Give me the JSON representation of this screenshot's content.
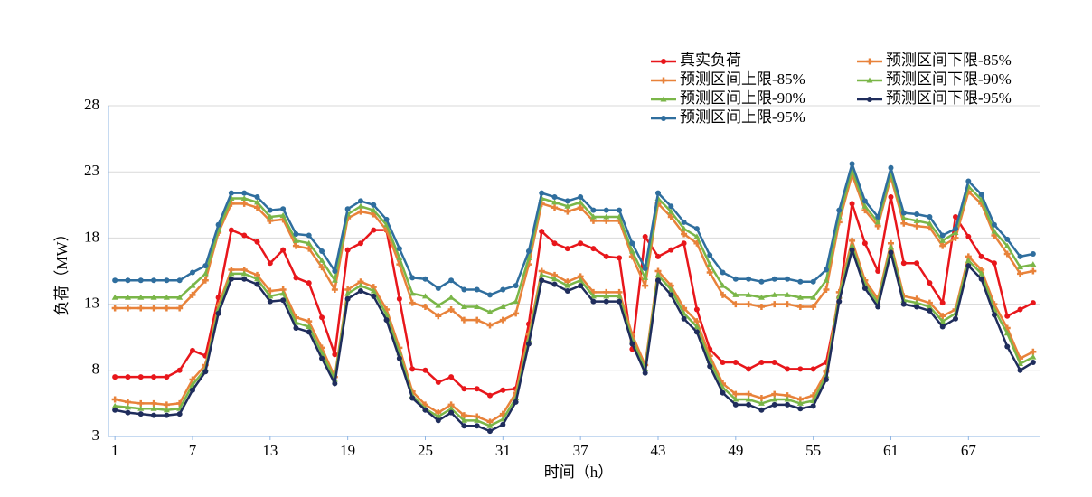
{
  "chart_data": {
    "type": "line",
    "xlabel": "时间（h）",
    "ylabel": "负荷（MW）",
    "x": [
      1,
      2,
      3,
      4,
      5,
      6,
      7,
      8,
      9,
      10,
      11,
      12,
      13,
      14,
      15,
      16,
      17,
      18,
      19,
      20,
      21,
      22,
      23,
      24,
      25,
      26,
      27,
      28,
      29,
      30,
      31,
      32,
      33,
      34,
      35,
      36,
      37,
      38,
      39,
      40,
      41,
      42,
      43,
      44,
      45,
      46,
      47,
      48,
      49,
      50,
      51,
      52,
      53,
      54,
      55,
      56,
      57,
      58,
      59,
      60,
      61,
      62,
      63,
      64,
      65,
      66,
      67,
      68,
      69,
      70,
      71,
      72
    ],
    "xlim": [
      0.5,
      72.5
    ],
    "xticks": [
      1,
      7,
      13,
      19,
      25,
      31,
      37,
      43,
      49,
      55,
      61,
      67
    ],
    "ylim": [
      3,
      28
    ],
    "yticks": [
      3,
      8,
      13,
      18,
      23,
      28
    ],
    "grid": true,
    "series": [
      {
        "name": "真实负荷",
        "color": "#e8161b",
        "marker": "circle",
        "values": [
          7.5,
          7.5,
          7.5,
          7.5,
          7.5,
          8.0,
          9.5,
          9.1,
          13.5,
          18.6,
          18.2,
          17.7,
          16.1,
          17.1,
          15.0,
          14.6,
          12.0,
          9.2,
          17.1,
          17.6,
          18.6,
          18.6,
          13.4,
          8.1,
          8.0,
          7.1,
          7.5,
          6.6,
          6.6,
          6.1,
          6.5,
          6.6,
          11.5,
          18.5,
          17.6,
          17.2,
          17.6,
          17.2,
          16.6,
          16.5,
          9.6,
          18.1,
          16.6,
          17.1,
          17.6,
          12.6,
          9.6,
          8.6,
          8.6,
          8.1,
          8.6,
          8.6,
          8.1,
          8.1,
          8.1,
          8.6,
          13.5,
          20.6,
          17.6,
          15.5,
          21.1,
          16.1,
          16.1,
          14.6,
          13.1,
          19.6,
          18.1,
          16.6,
          16.1,
          12.1,
          12.6,
          13.1
        ]
      },
      {
        "name": "预测区间上限-85%",
        "color": "#e8823a",
        "marker": "cross",
        "values": [
          12.7,
          12.7,
          12.7,
          12.7,
          12.7,
          12.7,
          13.7,
          14.8,
          18.4,
          20.6,
          20.6,
          20.3,
          19.3,
          19.4,
          17.4,
          17.2,
          15.8,
          14.1,
          19.5,
          20.0,
          19.8,
          18.6,
          16.0,
          13.1,
          12.8,
          12.1,
          12.6,
          11.8,
          11.8,
          11.4,
          11.8,
          12.3,
          16.0,
          20.6,
          20.3,
          20.0,
          20.3,
          19.3,
          19.3,
          19.3,
          16.6,
          14.4,
          20.6,
          19.6,
          18.3,
          17.6,
          15.4,
          13.7,
          13.0,
          13.0,
          12.8,
          13.0,
          13.0,
          12.8,
          12.8,
          14.1,
          19.2,
          22.8,
          20.1,
          18.9,
          22.6,
          19.1,
          18.9,
          18.8,
          17.4,
          18.0,
          21.5,
          20.6,
          18.2,
          16.8,
          15.3,
          15.5
        ]
      },
      {
        "name": "预测区间上限-90%",
        "color": "#7ab648",
        "marker": "triangle",
        "values": [
          13.5,
          13.5,
          13.5,
          13.5,
          13.5,
          13.5,
          14.4,
          15.3,
          18.6,
          21.0,
          21.0,
          20.7,
          19.6,
          19.7,
          17.8,
          17.6,
          16.3,
          14.8,
          19.8,
          20.4,
          20.1,
          19.0,
          16.5,
          13.8,
          13.6,
          12.9,
          13.5,
          12.8,
          12.8,
          12.4,
          12.8,
          13.2,
          16.5,
          21.0,
          20.7,
          20.4,
          20.7,
          19.6,
          19.6,
          19.6,
          17.0,
          15.0,
          21.0,
          20.0,
          18.7,
          18.1,
          16.0,
          14.4,
          13.7,
          13.7,
          13.5,
          13.7,
          13.7,
          13.5,
          13.5,
          14.8,
          19.6,
          23.2,
          20.4,
          19.2,
          22.9,
          19.5,
          19.3,
          19.1,
          17.8,
          18.4,
          21.9,
          20.9,
          18.5,
          17.4,
          15.8,
          16.0
        ]
      },
      {
        "name": "预测区间上限-95%",
        "color": "#2f6e9e",
        "marker": "circle",
        "values": [
          14.8,
          14.8,
          14.8,
          14.8,
          14.8,
          14.8,
          15.4,
          15.9,
          19.0,
          21.4,
          21.4,
          21.1,
          20.1,
          20.2,
          18.3,
          18.2,
          17.0,
          15.5,
          20.2,
          20.8,
          20.5,
          19.4,
          17.2,
          15.0,
          14.9,
          14.2,
          14.8,
          14.1,
          14.1,
          13.7,
          14.1,
          14.4,
          17.0,
          21.4,
          21.1,
          20.8,
          21.1,
          20.1,
          20.1,
          20.1,
          17.6,
          15.7,
          21.4,
          20.4,
          19.2,
          18.7,
          16.7,
          15.4,
          14.9,
          14.9,
          14.7,
          14.9,
          14.9,
          14.7,
          14.7,
          15.6,
          20.1,
          23.6,
          20.8,
          19.6,
          23.3,
          19.9,
          19.8,
          19.6,
          18.2,
          18.7,
          22.3,
          21.3,
          19.0,
          17.9,
          16.6,
          16.8
        ]
      },
      {
        "name": "预测区间下限-85%",
        "color": "#e8823a",
        "marker": "cross",
        "values": [
          5.8,
          5.6,
          5.5,
          5.5,
          5.4,
          5.5,
          7.3,
          8.4,
          12.9,
          15.6,
          15.6,
          15.2,
          14.0,
          14.1,
          12.0,
          11.7,
          9.7,
          7.5,
          14.1,
          14.7,
          14.3,
          12.6,
          9.7,
          6.4,
          5.4,
          4.8,
          5.4,
          4.6,
          4.5,
          4.1,
          4.7,
          6.3,
          10.7,
          15.5,
          15.2,
          14.7,
          15.1,
          13.9,
          13.9,
          13.9,
          10.7,
          8.4,
          15.5,
          14.4,
          12.7,
          11.7,
          9.1,
          7.0,
          6.2,
          6.2,
          5.9,
          6.2,
          6.1,
          5.8,
          6.1,
          7.9,
          13.9,
          17.8,
          14.8,
          13.4,
          17.6,
          13.6,
          13.4,
          13.1,
          12.1,
          12.6,
          16.6,
          15.6,
          13.0,
          11.2,
          8.9,
          9.4
        ]
      },
      {
        "name": "预测区间下限-90%",
        "color": "#7ab648",
        "marker": "triangle",
        "values": [
          5.3,
          5.2,
          5.1,
          5.1,
          5.0,
          5.1,
          6.9,
          8.1,
          12.6,
          15.3,
          15.3,
          14.9,
          13.6,
          13.8,
          11.6,
          11.3,
          9.3,
          7.3,
          13.8,
          14.4,
          14.0,
          12.2,
          9.3,
          6.1,
          5.1,
          4.5,
          5.1,
          4.2,
          4.2,
          3.8,
          4.3,
          5.9,
          10.3,
          15.2,
          14.9,
          14.4,
          14.8,
          13.6,
          13.6,
          13.6,
          10.3,
          8.1,
          15.2,
          14.1,
          12.3,
          11.3,
          8.7,
          6.7,
          5.8,
          5.8,
          5.5,
          5.8,
          5.8,
          5.5,
          5.7,
          7.6,
          13.6,
          17.4,
          14.5,
          13.1,
          17.3,
          13.3,
          13.1,
          12.8,
          11.7,
          12.3,
          16.3,
          15.3,
          12.6,
          10.8,
          8.5,
          9.0
        ]
      },
      {
        "name": "预测区间下限-95%",
        "color": "#1f2d5c",
        "marker": "circle",
        "values": [
          5.0,
          4.8,
          4.7,
          4.6,
          4.6,
          4.7,
          6.5,
          7.9,
          12.3,
          14.9,
          14.9,
          14.5,
          13.2,
          13.3,
          11.2,
          10.9,
          8.9,
          7.0,
          13.4,
          14.0,
          13.6,
          11.8,
          8.9,
          5.9,
          5.0,
          4.2,
          4.8,
          3.8,
          3.8,
          3.4,
          3.9,
          5.6,
          10.0,
          14.8,
          14.5,
          14.0,
          14.4,
          13.2,
          13.2,
          13.2,
          10.0,
          7.8,
          14.8,
          13.7,
          11.9,
          10.9,
          8.3,
          6.3,
          5.4,
          5.4,
          5.0,
          5.4,
          5.4,
          5.1,
          5.3,
          7.3,
          13.2,
          17.1,
          14.2,
          12.8,
          16.9,
          13.0,
          12.8,
          12.5,
          11.3,
          11.9,
          15.9,
          14.9,
          12.2,
          9.8,
          8.0,
          8.6
        ]
      }
    ]
  }
}
